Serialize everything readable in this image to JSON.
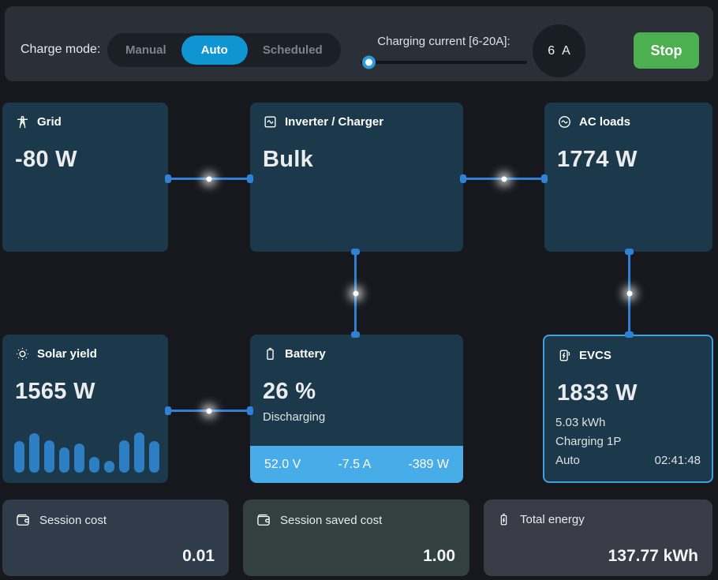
{
  "topbar": {
    "charge_mode_label": "Charge mode:",
    "modes": [
      {
        "label": "Manual",
        "active": false
      },
      {
        "label": "Auto",
        "active": true
      },
      {
        "label": "Scheduled",
        "active": false
      }
    ],
    "charging_current_label": "Charging current [6-20A]:",
    "charging_current": {
      "value": "6",
      "unit": "A",
      "min": 6,
      "max": 20
    },
    "stop_label": "Stop"
  },
  "tiles": {
    "grid": {
      "title": "Grid",
      "value": "-80 W",
      "icon": "grid-pylon-icon"
    },
    "inverter": {
      "title": "Inverter / Charger",
      "value": "Bulk",
      "icon": "inverter-icon"
    },
    "ac_loads": {
      "title": "AC loads",
      "value": "1774 W",
      "icon": "ac-loads-icon"
    },
    "solar": {
      "title": "Solar yield",
      "value": "1565 W",
      "icon": "sun-icon",
      "bars": [
        40,
        50,
        41,
        32,
        37,
        20,
        15,
        41,
        51,
        40
      ]
    },
    "battery": {
      "title": "Battery",
      "value": "26 %",
      "status": "Discharging",
      "voltage": "52.0 V",
      "current": "-7.5 A",
      "power": "-389 W",
      "icon": "battery-icon"
    },
    "evcs": {
      "title": "EVCS",
      "value": "1833 W",
      "energy": "5.03 kWh",
      "status": "Charging 1P",
      "mode": "Auto",
      "time": "02:41:48",
      "icon": "ev-charger-icon",
      "highlighted": true
    }
  },
  "summary": [
    {
      "label": "Session cost",
      "value": "0.01",
      "icon": "wallet-icon"
    },
    {
      "label": "Session saved cost",
      "value": "1.00",
      "icon": "wallet-icon"
    },
    {
      "label": "Total energy",
      "value": "137.77 kWh",
      "icon": "battery-bolt-icon"
    }
  ],
  "colors": {
    "page_bg": "#16181e",
    "topbar_bg": "#2a2f38",
    "accent_blue": "#0f95d2",
    "stop_green": "#4caf50",
    "tile_bg": "#1b394b",
    "connector_blue": "#2e81d4",
    "solar_bar_blue": "#2e7ec4",
    "battery_footer_blue": "#48ace8",
    "evcs_border_blue": "#3da2e0"
  }
}
